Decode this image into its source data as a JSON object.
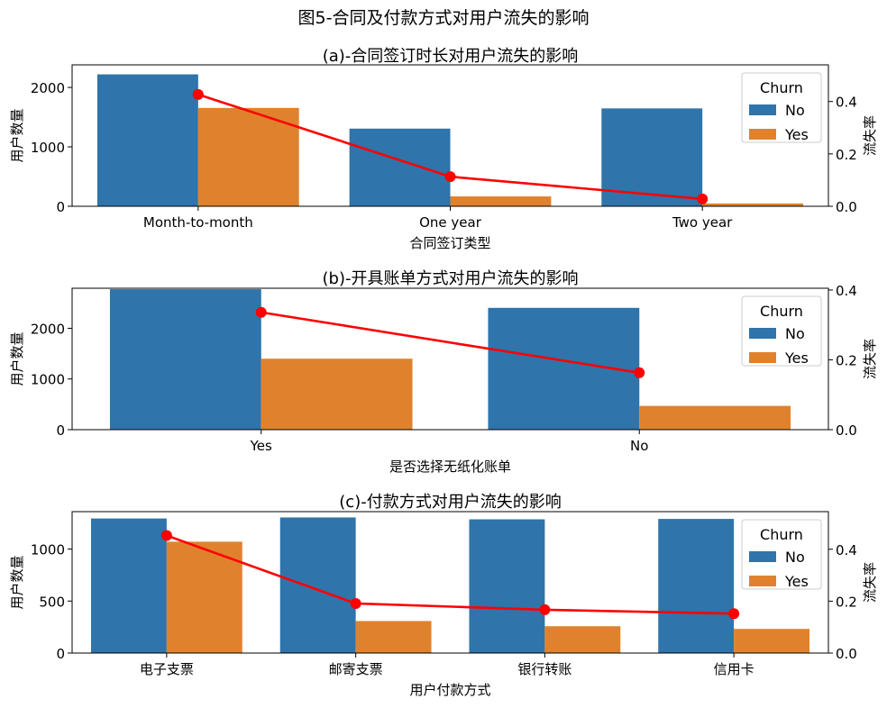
{
  "suptitle": "图5-合同及付款方式对用户流失的影响",
  "colors": {
    "no": "#2f74aa",
    "yes": "#e0822d",
    "line": "#ff0000"
  },
  "chart_data": [
    {
      "type": "bar",
      "title": "(a)-合同签订时长对用户流失的影响",
      "xlabel": "合同签订类型",
      "ylabel": "用户数量",
      "y2label": "流失率",
      "categories": [
        "Month-to-month",
        "One year",
        "Two year"
      ],
      "series": [
        {
          "name": "No",
          "values": [
            2220,
            1307,
            1647
          ]
        },
        {
          "name": "Yes",
          "values": [
            1655,
            166,
            48
          ]
        }
      ],
      "ylim": [
        0,
        2380
      ],
      "yticks": [
        0,
        1000,
        2000
      ],
      "line": {
        "name": "流失率",
        "values": [
          0.427,
          0.113,
          0.028
        ]
      },
      "y2lim": [
        0,
        0.54
      ],
      "y2ticks": [
        "0.0",
        "0.2",
        "0.4"
      ],
      "legend": {
        "title": "Churn",
        "labels": [
          "No",
          "Yes"
        ],
        "placement": "top-right"
      }
    },
    {
      "type": "bar",
      "title": "(b)-开具账单方式对用户流失的影响",
      "xlabel": "是否选择无纸化账单",
      "ylabel": "用户数量",
      "y2label": "流失率",
      "categories": [
        "Yes",
        "No"
      ],
      "series": [
        {
          "name": "No",
          "values": [
            2771,
            2403
          ]
        },
        {
          "name": "Yes",
          "values": [
            1400,
            469
          ]
        }
      ],
      "ylim": [
        0,
        2790
      ],
      "yticks": [
        0,
        1000,
        2000
      ],
      "line": {
        "name": "流失率",
        "values": [
          0.336,
          0.163
        ]
      },
      "y2lim": [
        0,
        0.405
      ],
      "y2ticks": [
        "0.0",
        "0.2",
        "0.4"
      ],
      "legend": {
        "title": "Churn",
        "labels": [
          "No",
          "Yes"
        ],
        "placement": "top-right"
      }
    },
    {
      "type": "bar",
      "title": "(c)-付款方式对用户流失的影响",
      "xlabel": "用户付款方式",
      "ylabel": "用户数量",
      "y2label": "流失率",
      "categories": [
        "电子支票",
        "邮寄支票",
        "银行转账",
        "信用卡"
      ],
      "series": [
        {
          "name": "No",
          "values": [
            1294,
            1304,
            1286,
            1290
          ]
        },
        {
          "name": "Yes",
          "values": [
            1071,
            308,
            258,
            232
          ]
        }
      ],
      "ylim": [
        0,
        1360
      ],
      "yticks": [
        0,
        500,
        1000
      ],
      "line": {
        "name": "流失率",
        "values": [
          0.453,
          0.191,
          0.167,
          0.152
        ]
      },
      "y2lim": [
        0,
        0.545
      ],
      "y2ticks": [
        "0.0",
        "0.2",
        "0.4"
      ],
      "legend": {
        "title": "Churn",
        "labels": [
          "No",
          "Yes"
        ],
        "placement": "top-right"
      }
    }
  ]
}
